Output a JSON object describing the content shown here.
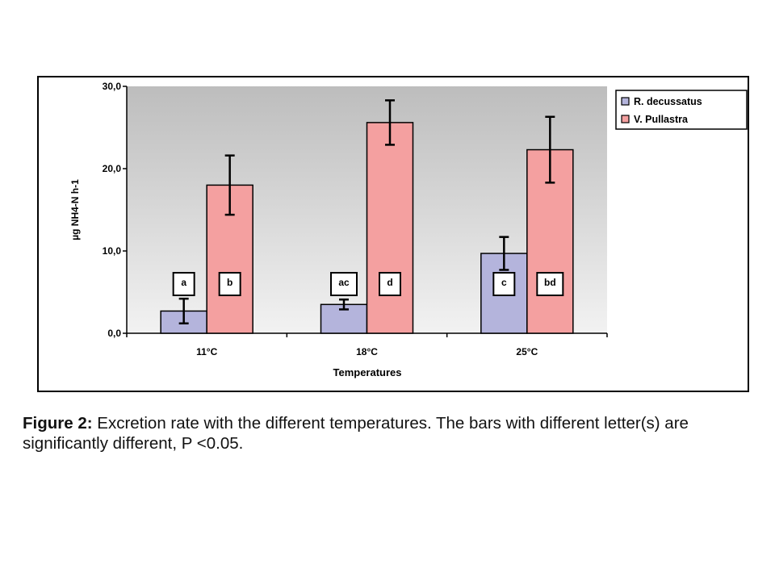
{
  "chart_data": {
    "type": "bar",
    "categories": [
      "11°C",
      "18°C",
      "25°C"
    ],
    "series": [
      {
        "name": "R. decussatus",
        "color": "#b4b4dc",
        "values": [
          2.7,
          3.5,
          9.7
        ],
        "error": [
          1.5,
          0.6,
          2.0
        ],
        "letters": [
          "a",
          "ac",
          "c"
        ]
      },
      {
        "name": "V. Pullastra",
        "color": "#f4a0a0",
        "values": [
          18.0,
          25.6,
          22.3
        ],
        "error": [
          3.6,
          2.7,
          4.0
        ],
        "letters": [
          "b",
          "d",
          "bd"
        ]
      }
    ],
    "xlabel": "Temperatures",
    "ylabel": "µg NH4-N h-1",
    "ylim": [
      0,
      30
    ],
    "yticks": [
      "0,0",
      "10,0",
      "20,0",
      "30,0"
    ],
    "yticks_values": [
      0,
      10,
      20,
      30
    ],
    "legend_position": "top-right",
    "grid": false,
    "plot_background": "gradient-grey"
  },
  "caption": {
    "label": "Figure 2:",
    "text": "Excretion rate with the different temperatures. The bars with different letter(s) are significantly different, P <0.05."
  }
}
